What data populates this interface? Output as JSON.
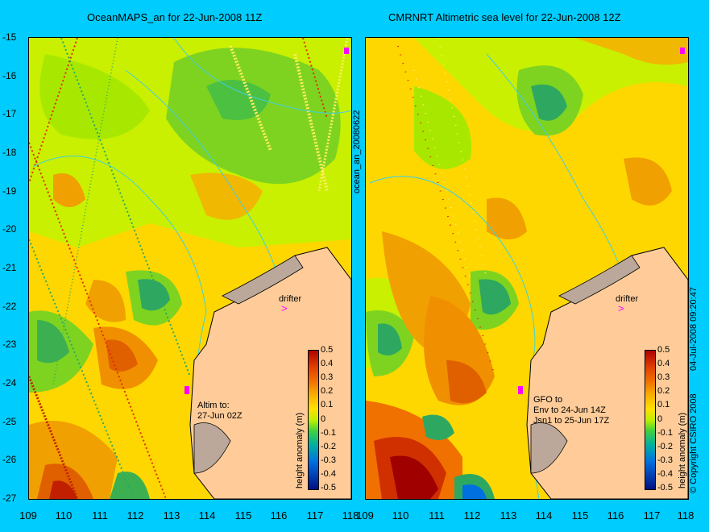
{
  "left_panel": {
    "title": "OceanMAPS_an for 22-Jun-2008 11Z",
    "side_label": "ocean_an_20080622",
    "drifter_label": "drifter",
    "note": "Altim to:\n27-Jun 02Z"
  },
  "right_panel": {
    "title": "CMRNRT Altimetric sea level  for 22-Jun-2008 12Z",
    "drifter_label": "drifter",
    "note": "GFO to\nEnv to 24-Jun 14Z\nJsn1 to 25-Jun 17Z"
  },
  "y_axis_labels": [
    "-15",
    "-16",
    "-17",
    "-18",
    "-19",
    "-20",
    "-21",
    "-22",
    "-23",
    "-24",
    "-25",
    "-26",
    "-27"
  ],
  "x_axis_labels": [
    "109",
    "110",
    "111",
    "112",
    "113",
    "114",
    "115",
    "116",
    "117",
    "118"
  ],
  "colorbar": {
    "title": "height anomaly (m)",
    "ticks": [
      "0.5",
      "0.4",
      "0.3",
      "0.2",
      "0.1",
      "0",
      "-0.1",
      "-0.2",
      "-0.3",
      "-0.4",
      "-0.5"
    ]
  },
  "copyright": "© Copyright CSIRO 2008",
  "timestamp": "04-Jul-2008 09:20:47",
  "map_extent": {
    "lon": [
      109,
      118
    ],
    "lat": [
      -27,
      -15
    ]
  },
  "colors": {
    "background": "#00cdfd",
    "land": "#ffcc99",
    "drifter_marker": "#ff00ff"
  }
}
